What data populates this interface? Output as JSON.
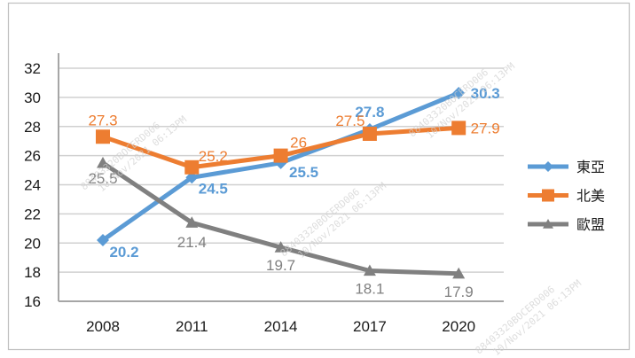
{
  "chart_data": {
    "type": "line",
    "title": "",
    "xlabel": "",
    "ylabel": "",
    "categories": [
      "2008",
      "2011",
      "2014",
      "2017",
      "2020"
    ],
    "ylim": [
      16,
      32
    ],
    "yticks": [
      "16",
      "18",
      "20",
      "22",
      "24",
      "26",
      "28",
      "30",
      "32"
    ],
    "grid": true,
    "legend_position": "right",
    "series": [
      {
        "name": "東亞",
        "color": "#5b9bd5",
        "marker": "diamond",
        "values": [
          20.2,
          24.5,
          25.5,
          27.8,
          30.3
        ],
        "labels": [
          "20.2",
          "24.5",
          "25.5",
          "27.8",
          "30.3"
        ],
        "label_bold": true
      },
      {
        "name": "北美",
        "color": "#ed7d31",
        "marker": "square",
        "values": [
          27.3,
          25.2,
          26,
          27.5,
          27.9
        ],
        "labels": [
          "27.3",
          "25.2",
          "26",
          "27.5",
          "27.9"
        ],
        "label_bold": false
      },
      {
        "name": "歐盟",
        "color": "#808080",
        "marker": "triangle",
        "values": [
          25.5,
          21.4,
          19.7,
          18.1,
          17.9
        ],
        "labels": [
          "25.5",
          "21.4",
          "19.7",
          "18.1",
          "17.9"
        ],
        "label_bold": false
      }
    ]
  },
  "watermark": {
    "line1": "88403320BOCERD006",
    "line2": "10/Nov/2021 06:13PM"
  }
}
